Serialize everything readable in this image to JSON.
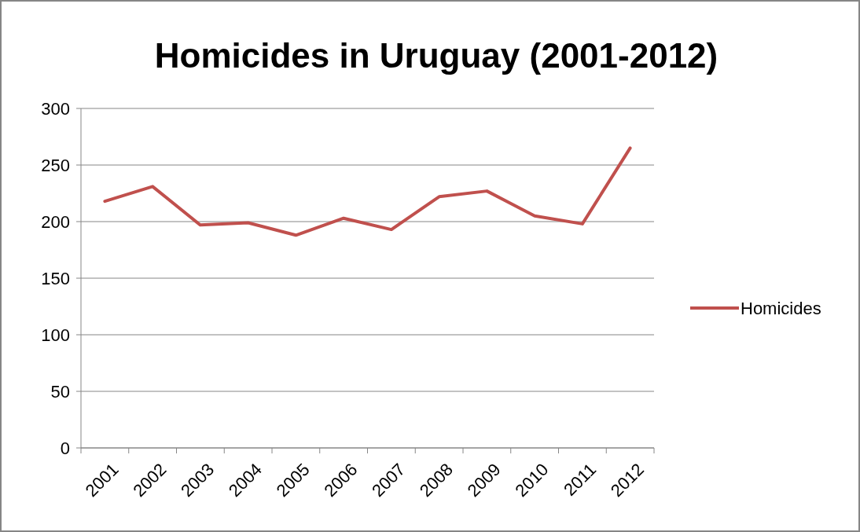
{
  "chart_data": {
    "type": "line",
    "title": "Homicides in Uruguay (2001-2012)",
    "categories": [
      "2001",
      "2002",
      "2003",
      "2004",
      "2005",
      "2006",
      "2007",
      "2008",
      "2009",
      "2010",
      "2011",
      "2012"
    ],
    "series": [
      {
        "name": "Homicides",
        "color": "#c0504d",
        "values": [
          218,
          231,
          197,
          199,
          188,
          203,
          193,
          222,
          227,
          205,
          198,
          265
        ]
      }
    ],
    "ylim": [
      0,
      300
    ],
    "yticks": [
      0,
      50,
      100,
      150,
      200,
      250,
      300
    ],
    "grid": "y",
    "legend": "right",
    "marker": "none",
    "line_style": "solid"
  }
}
